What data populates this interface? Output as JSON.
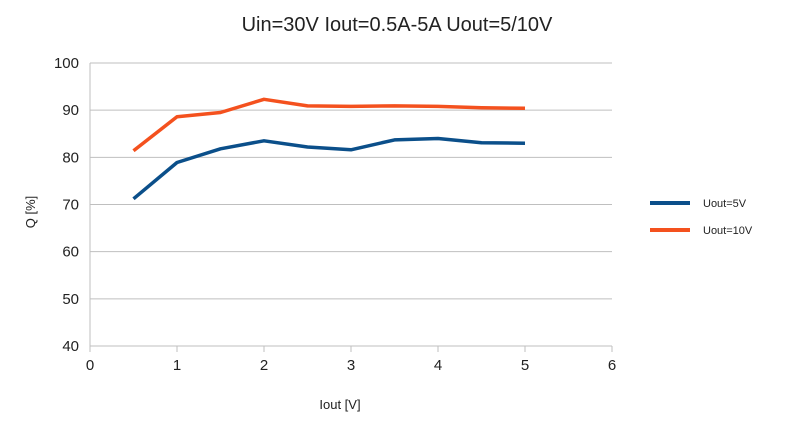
{
  "chart_data": {
    "type": "line",
    "title": "Uin=30V Iout=0.5A-5A Uout=5/10V",
    "xlabel": "Iout [V]",
    "ylabel": "Q [%]",
    "xlim": [
      0,
      6
    ],
    "ylim": [
      40,
      100
    ],
    "xticks": [
      0,
      1,
      2,
      3,
      4,
      5,
      6
    ],
    "yticks": [
      40,
      50,
      60,
      70,
      80,
      90,
      100
    ],
    "grid": "horizontal",
    "legend_position": "right",
    "series": [
      {
        "name": "Uout=5V",
        "color": "#0b4f8a",
        "x": [
          0.5,
          1.0,
          1.5,
          2.0,
          2.5,
          3.0,
          3.5,
          4.0,
          4.5,
          5.0
        ],
        "y": [
          71.2,
          78.9,
          81.8,
          83.5,
          82.2,
          81.6,
          83.7,
          84.0,
          83.1,
          83.0
        ]
      },
      {
        "name": "Uout=10V",
        "color": "#f4511e",
        "x": [
          0.5,
          1.0,
          1.5,
          2.0,
          2.5,
          3.0,
          3.5,
          4.0,
          4.5,
          5.0
        ],
        "y": [
          81.4,
          88.6,
          89.5,
          92.3,
          90.9,
          90.8,
          90.9,
          90.8,
          90.5,
          90.4
        ]
      }
    ]
  }
}
